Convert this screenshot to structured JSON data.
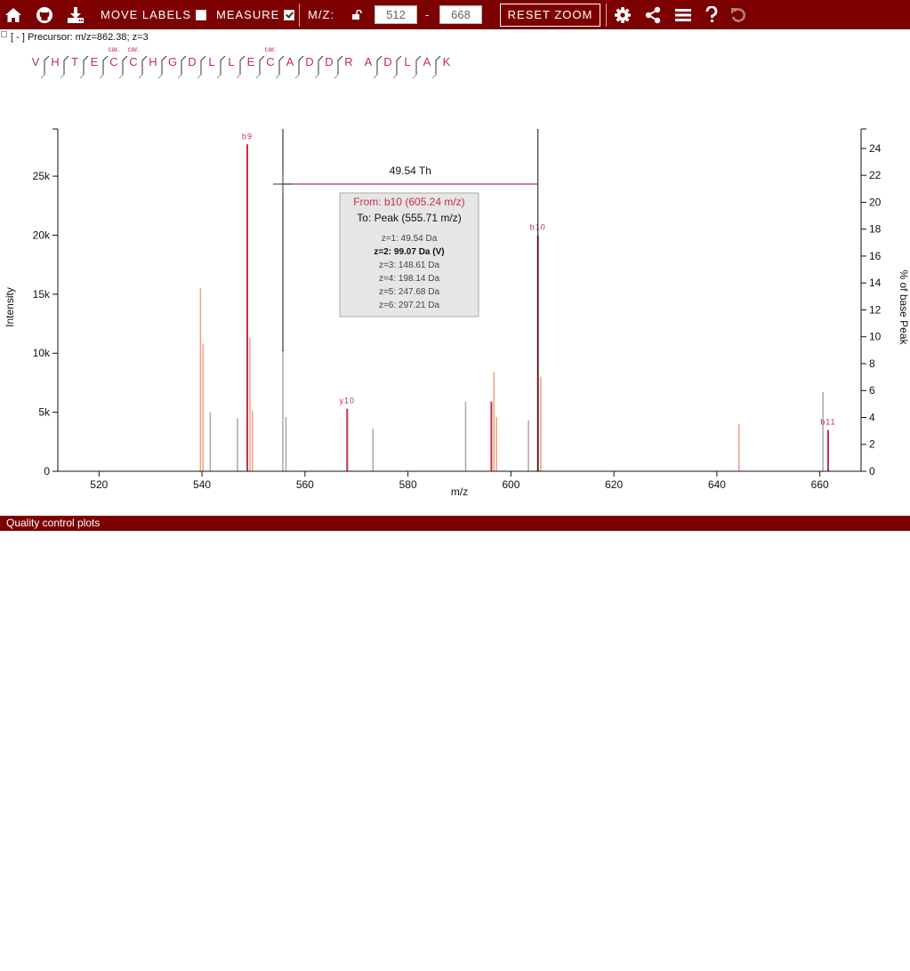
{
  "toolbar": {
    "move_labels": "MOVE LABELS",
    "measure": "MEASURE",
    "mz_label": "M/Z:",
    "mz_min": "512",
    "mz_dash": "-",
    "mz_max": "668",
    "reset_zoom": "RESET ZOOM",
    "icons": [
      "home-icon",
      "github-icon",
      "download-icon",
      "lock-icon",
      "gear-icon",
      "share-icon",
      "menu-icon",
      "help-icon",
      "undo-icon"
    ]
  },
  "precursor": {
    "toggle": "[ - ]",
    "text": "Precursor: m/z=862.38; z=3"
  },
  "peptide": {
    "residues": [
      "V",
      "H",
      "T",
      "E",
      "C",
      "C",
      "H",
      "G",
      "D",
      "L",
      "L",
      "E",
      "C",
      "A",
      "D",
      "D",
      "R",
      "A",
      "D",
      "L",
      "A",
      "K"
    ],
    "modifications": {
      "4": "car.",
      "5": "car.",
      "12": "car."
    },
    "mod_color": "#c0314a",
    "residue_color": "#c0314a"
  },
  "measure": {
    "distance_label": "49.54 Th",
    "from_mz": 605.24,
    "to_mz": 555.71,
    "tooltip_from": "From: b10 (605.24 m/z)",
    "tooltip_to": "To: Peak (555.71 m/z)",
    "charges": [
      {
        "text": "z=1: 49.54 Da",
        "bold": false
      },
      {
        "text": "z=2: 99.07 Da (V)",
        "bold": true
      },
      {
        "text": "z=3: 148.61 Da",
        "bold": false
      },
      {
        "text": "z=4: 198.14 Da",
        "bold": false
      },
      {
        "text": "z=5: 247.68 Da",
        "bold": false
      },
      {
        "text": "z=6: 297.21 Da",
        "bold": false
      }
    ]
  },
  "chart_data": {
    "type": "bar",
    "xlabel": "m/z",
    "ylabel": "Intensity",
    "y2label": "% of base Peak",
    "xlim": [
      512,
      668
    ],
    "ylim": [
      0,
      29000
    ],
    "y2lim": [
      0,
      25.45
    ],
    "x_ticks": [
      520,
      540,
      560,
      580,
      600,
      620,
      640,
      660
    ],
    "y_ticks": [
      {
        "value": 0,
        "label": "0"
      },
      {
        "value": 5000,
        "label": "5k"
      },
      {
        "value": 10000,
        "label": "10k"
      },
      {
        "value": 15000,
        "label": "15k"
      },
      {
        "value": 20000,
        "label": "20k"
      },
      {
        "value": 25000,
        "label": "25k"
      }
    ],
    "y2_ticks": [
      0,
      2,
      4,
      6,
      8,
      10,
      12,
      14,
      16,
      18,
      20,
      22,
      24
    ],
    "colors": {
      "labeled": "#c0314a",
      "isotope": "#f0a080",
      "unlabeled": "#a8a8a8"
    },
    "peaks": [
      {
        "mz": 539.7,
        "intensity": 15500,
        "kind": "isotope"
      },
      {
        "mz": 540.2,
        "intensity": 10800,
        "kind": "isotope"
      },
      {
        "mz": 541.6,
        "intensity": 5000,
        "kind": "unlabeled"
      },
      {
        "mz": 546.9,
        "intensity": 4500,
        "kind": "unlabeled"
      },
      {
        "mz": 548.8,
        "intensity": 27700,
        "kind": "labeled",
        "label": "b9"
      },
      {
        "mz": 549.3,
        "intensity": 11300,
        "kind": "isotope"
      },
      {
        "mz": 549.8,
        "intensity": 5100,
        "kind": "isotope"
      },
      {
        "mz": 555.7,
        "intensity": 10300,
        "kind": "unlabeled"
      },
      {
        "mz": 556.3,
        "intensity": 4600,
        "kind": "unlabeled"
      },
      {
        "mz": 568.2,
        "intensity": 5300,
        "kind": "labeled",
        "label": "y10"
      },
      {
        "mz": 573.2,
        "intensity": 3600,
        "kind": "unlabeled"
      },
      {
        "mz": 591.2,
        "intensity": 5900,
        "kind": "unlabeled"
      },
      {
        "mz": 596.2,
        "intensity": 5900,
        "kind": "labeled"
      },
      {
        "mz": 596.7,
        "intensity": 8400,
        "kind": "isotope"
      },
      {
        "mz": 597.2,
        "intensity": 4600,
        "kind": "isotope"
      },
      {
        "mz": 603.4,
        "intensity": 4300,
        "kind": "unlabeled"
      },
      {
        "mz": 605.24,
        "intensity": 20000,
        "kind": "labeled",
        "label": "b10"
      },
      {
        "mz": 605.8,
        "intensity": 8000,
        "kind": "isotope"
      },
      {
        "mz": 644.3,
        "intensity": 4000,
        "kind": "isotope"
      },
      {
        "mz": 660.6,
        "intensity": 6700,
        "kind": "unlabeled"
      },
      {
        "mz": 661.6,
        "intensity": 3500,
        "kind": "labeled",
        "label": "b11"
      }
    ]
  },
  "footer": {
    "title": "Quality control plots",
    "toggle": "»"
  }
}
